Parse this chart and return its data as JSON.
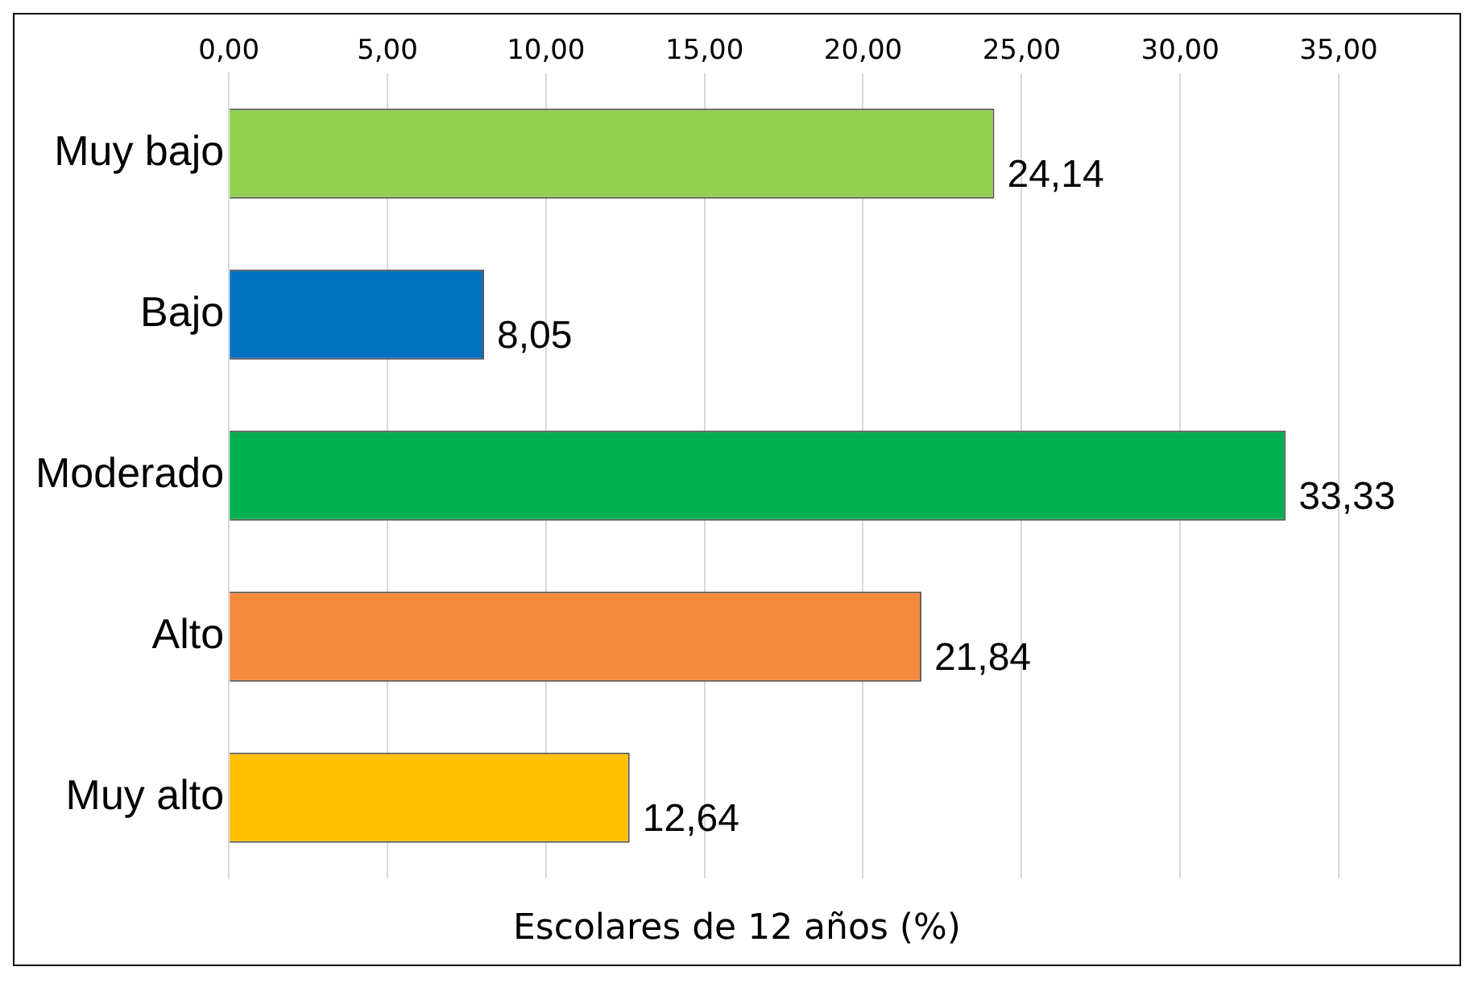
{
  "chart_data": {
    "type": "bar",
    "orientation": "horizontal",
    "categories": [
      "Muy bajo",
      "Bajo",
      "Moderado",
      "Alto",
      "Muy alto"
    ],
    "values": [
      24.14,
      8.05,
      33.33,
      21.84,
      12.64
    ],
    "colors": [
      "#92d050",
      "#0070c0",
      "#00b050",
      "#f58a3c",
      "#ffc000"
    ],
    "value_labels": [
      "24,14",
      "8,05",
      "33,33",
      "21,84",
      "12,64"
    ],
    "xlabel": "Escolares de 12 años (%)",
    "xlim": [
      0,
      35
    ],
    "xticks": [
      {
        "value": 0,
        "label": "0,00"
      },
      {
        "value": 5,
        "label": "5,00"
      },
      {
        "value": 10,
        "label": "10,00"
      },
      {
        "value": 15,
        "label": "15,00"
      },
      {
        "value": 20,
        "label": "20,00"
      },
      {
        "value": 25,
        "label": "25,00"
      },
      {
        "value": 30,
        "label": "30,00"
      },
      {
        "value": 35,
        "label": "35,00"
      }
    ],
    "grid": "x",
    "legend": false
  }
}
